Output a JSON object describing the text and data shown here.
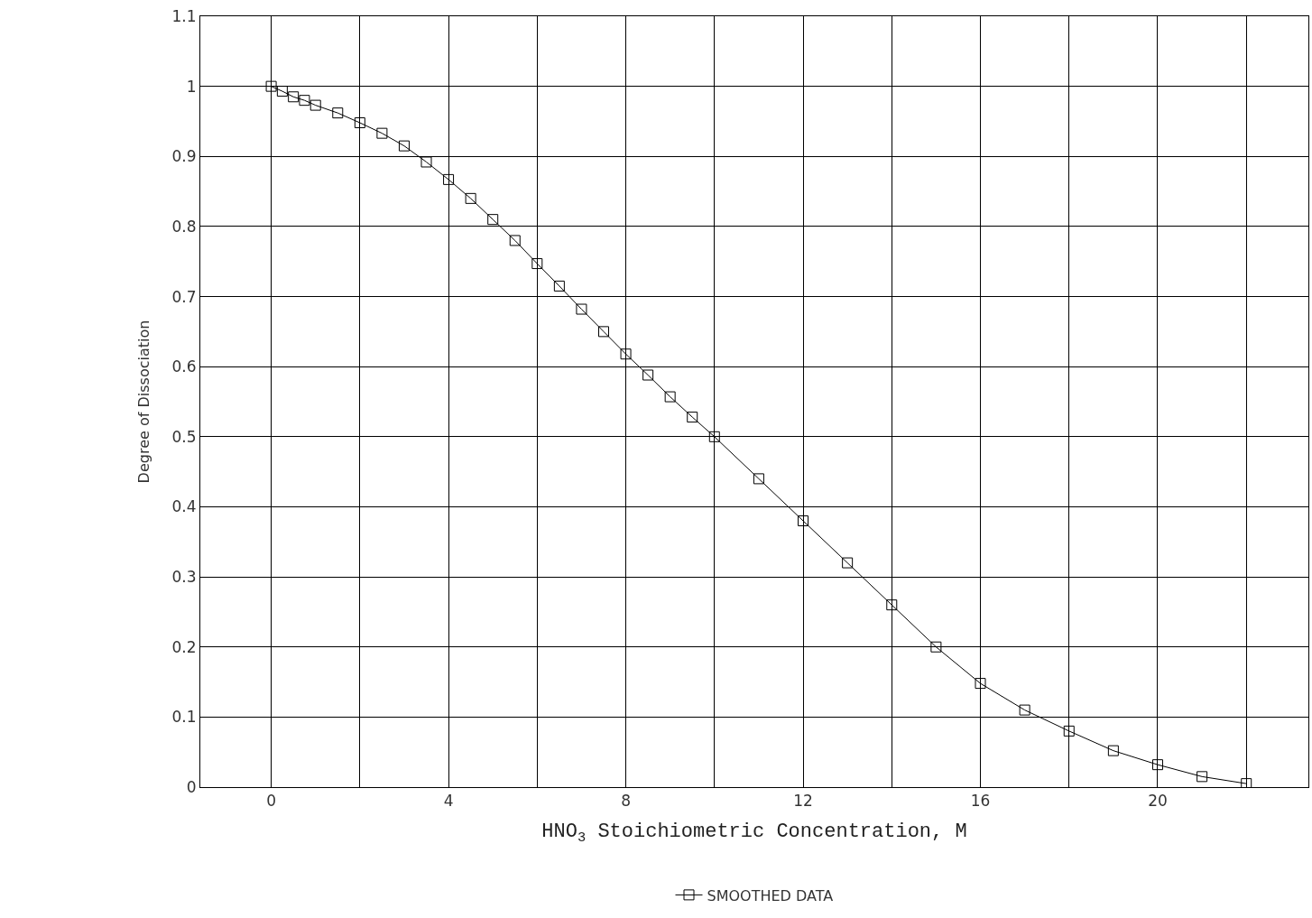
{
  "chart_data": {
    "type": "line",
    "xlabel": "HNO$_{3}$ Stoichiometric Concentration, M",
    "ylabel": "Degree of Dissociation",
    "x": [
      0,
      0.25,
      0.5,
      0.75,
      1,
      1.5,
      2,
      2.5,
      3,
      3.5,
      4,
      4.5,
      5,
      5.5,
      6,
      6.5,
      7,
      7.5,
      8,
      8.5,
      9,
      9.5,
      10,
      11,
      12,
      13,
      14,
      15,
      16,
      17,
      18,
      19,
      20,
      21,
      22
    ],
    "series": [
      {
        "name": "SMOOTHED DATA",
        "color": "#000000",
        "values": [
          1.0,
          0.993,
          0.985,
          0.98,
          0.973,
          0.962,
          0.948,
          0.933,
          0.915,
          0.892,
          0.867,
          0.84,
          0.81,
          0.78,
          0.747,
          0.715,
          0.682,
          0.65,
          0.618,
          0.588,
          0.557,
          0.528,
          0.5,
          0.44,
          0.38,
          0.32,
          0.26,
          0.2,
          0.148,
          0.11,
          0.08,
          0.052,
          0.032,
          0.015,
          0.005
        ]
      }
    ],
    "xlim": [
      -1.6,
      23.4
    ],
    "xticks": [
      0,
      {
        "value": 2,
        "label": null
      },
      4,
      {
        "value": 6,
        "label": null
      },
      8,
      {
        "value": 10,
        "label": null
      },
      12,
      {
        "value": 14,
        "label": null
      },
      16,
      {
        "value": 18,
        "label": null
      },
      20,
      {
        "value": 22,
        "label": null
      }
    ],
    "ylim": [
      0,
      1.1
    ],
    "yticks": [
      0,
      0.1,
      0.2,
      0.3,
      0.4,
      0.5,
      0.6,
      0.7,
      0.8,
      0.9,
      1,
      1.1
    ],
    "grid": true,
    "legend": "bottom",
    "marker": "square",
    "line_style": "solid"
  }
}
